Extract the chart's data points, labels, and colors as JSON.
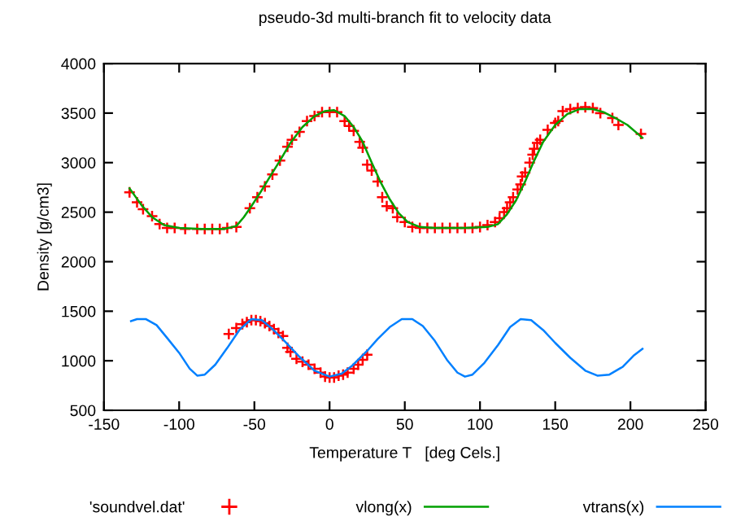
{
  "chart_data": {
    "type": "scatter",
    "title": "pseudo-3d multi-branch fit to velocity data",
    "xlabel": "Temperature T   [deg Cels.]",
    "ylabel": "Density [g/cm3]",
    "xlim": [
      -150,
      250
    ],
    "xticks": [
      -150,
      -100,
      -50,
      0,
      50,
      100,
      150,
      200,
      250
    ],
    "ylim": [
      500,
      4000
    ],
    "yticks": [
      500,
      1000,
      1500,
      2000,
      2500,
      3000,
      3500,
      4000
    ],
    "grid": false,
    "legend": "bottom",
    "series": [
      {
        "name": "'soundvel.dat'",
        "type": "scatter",
        "marker": "cross",
        "color": "#ff0000",
        "x": [
          -133,
          -128,
          -124,
          -118,
          -113,
          -108,
          -103,
          -96,
          -88,
          -83,
          -78,
          -73,
          -68,
          -62,
          -53,
          -48,
          -43,
          -38,
          -33,
          -28,
          -25,
          -20,
          -15,
          -10,
          -5,
          0,
          5,
          10,
          13,
          16,
          20,
          22,
          25,
          28,
          32,
          35,
          38,
          42,
          45,
          50,
          55,
          60,
          65,
          70,
          75,
          80,
          85,
          90,
          95,
          100,
          105,
          110,
          113,
          116,
          118,
          120,
          122,
          125,
          127,
          128,
          130,
          133,
          135,
          136,
          138,
          140,
          145,
          150,
          152,
          155,
          160,
          165,
          170,
          175,
          180,
          188,
          192,
          207,
          -67,
          -62,
          -58,
          -55,
          -52,
          -49,
          -46,
          -43,
          -40,
          -37,
          -34,
          -31,
          -28,
          -26,
          -22,
          -18,
          -14,
          -10,
          -6,
          -3,
          0,
          3,
          6,
          9,
          12,
          16,
          19,
          22,
          25
        ],
        "values": [
          2700,
          2600,
          2530,
          2460,
          2380,
          2340,
          2340,
          2330,
          2330,
          2330,
          2330,
          2330,
          2340,
          2350,
          2540,
          2650,
          2760,
          2880,
          3020,
          3160,
          3230,
          3310,
          3420,
          3470,
          3510,
          3510,
          3510,
          3420,
          3370,
          3320,
          3210,
          3150,
          2980,
          2920,
          2810,
          2650,
          2560,
          2540,
          2450,
          2400,
          2350,
          2340,
          2340,
          2340,
          2340,
          2340,
          2340,
          2340,
          2340,
          2350,
          2370,
          2400,
          2440,
          2500,
          2540,
          2600,
          2650,
          2730,
          2780,
          2860,
          2900,
          3000,
          3080,
          3140,
          3200,
          3230,
          3330,
          3400,
          3420,
          3520,
          3540,
          3550,
          3560,
          3550,
          3500,
          3450,
          3380,
          3290,
          1270,
          1330,
          1370,
          1390,
          1410,
          1410,
          1400,
          1380,
          1350,
          1320,
          1280,
          1250,
          1130,
          1090,
          1020,
          990,
          960,
          920,
          880,
          840,
          830,
          830,
          850,
          860,
          880,
          920,
          960,
          1010,
          1060
        ]
      },
      {
        "name": "vlong(x)",
        "type": "line",
        "marker": "none",
        "line_style": "solid",
        "color": "#00a000",
        "x": [
          -133,
          -125,
          -118,
          -110,
          -100,
          -85,
          -70,
          -62,
          -57,
          -52,
          -46,
          -40,
          -33,
          -26,
          -18,
          -10,
          -3,
          3,
          10,
          16,
          22,
          28,
          34,
          40,
          46,
          52,
          60,
          70,
          90,
          105,
          112,
          118,
          124,
          130,
          136,
          142,
          150,
          158,
          166,
          175,
          182,
          190,
          198,
          208
        ],
        "values": [
          2740,
          2570,
          2450,
          2370,
          2340,
          2330,
          2330,
          2360,
          2450,
          2560,
          2700,
          2850,
          3020,
          3200,
          3360,
          3470,
          3520,
          3530,
          3470,
          3360,
          3210,
          3000,
          2800,
          2630,
          2490,
          2400,
          2350,
          2340,
          2340,
          2350,
          2380,
          2480,
          2620,
          2810,
          3020,
          3210,
          3380,
          3490,
          3540,
          3540,
          3510,
          3450,
          3380,
          3250
        ]
      },
      {
        "name": "vtrans(x)",
        "type": "line",
        "marker": "none",
        "line_style": "solid",
        "color": "#0080ff",
        "x": [
          -132,
          -128,
          -122,
          -115,
          -108,
          -100,
          -93,
          -88,
          -83,
          -76,
          -68,
          -60,
          -52,
          -45,
          -38,
          -30,
          -20,
          -10,
          0,
          8,
          15,
          25,
          32,
          40,
          48,
          55,
          62,
          70,
          78,
          85,
          90,
          95,
          103,
          112,
          120,
          127,
          134,
          142,
          150,
          160,
          170,
          178,
          186,
          195,
          202,
          208
        ],
        "values": [
          1400,
          1420,
          1420,
          1360,
          1230,
          1080,
          920,
          850,
          860,
          960,
          1130,
          1310,
          1420,
          1410,
          1320,
          1200,
          1040,
          900,
          840,
          870,
          950,
          1100,
          1220,
          1340,
          1420,
          1420,
          1350,
          1200,
          1010,
          880,
          840,
          860,
          980,
          1160,
          1340,
          1420,
          1410,
          1310,
          1180,
          1030,
          900,
          850,
          860,
          940,
          1050,
          1120
        ]
      }
    ]
  }
}
